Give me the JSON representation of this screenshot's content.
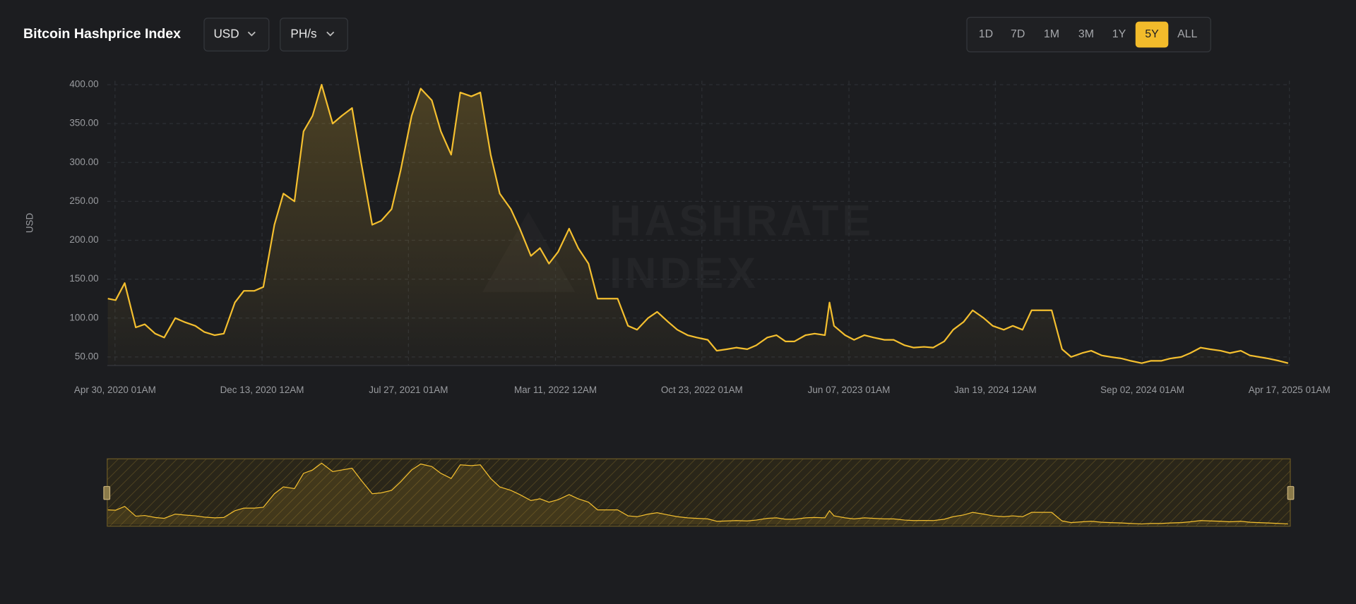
{
  "header": {
    "title": "Bitcoin Hashprice Index"
  },
  "controls": {
    "currency": "USD",
    "unit": "PH/s",
    "ranges": [
      "1D",
      "7D",
      "1M",
      "3M",
      "1Y",
      "5Y",
      "ALL"
    ],
    "active": "5Y"
  },
  "chart_data": {
    "type": "line",
    "ylabel": "USD",
    "watermark": [
      "HASHRATE",
      "INDEX"
    ],
    "color": "#f4bf2f",
    "xlim": [
      "2020-04-18",
      "2025-04-17"
    ],
    "xticks": [
      {
        "value": "2020-04-30",
        "label": "Apr 30, 2020 01AM"
      },
      {
        "value": "2020-12-13",
        "label": "Dec 13, 2020 12AM"
      },
      {
        "value": "2021-07-27",
        "label": "Jul 27, 2021 01AM"
      },
      {
        "value": "2022-03-11",
        "label": "Mar 11, 2022 12AM"
      },
      {
        "value": "2022-10-23",
        "label": "Oct 23, 2022 01AM"
      },
      {
        "value": "2023-06-07",
        "label": "Jun 07, 2023 01AM"
      },
      {
        "value": "2024-01-19",
        "label": "Jan 19, 2024 12AM"
      },
      {
        "value": "2024-09-02",
        "label": "Sep 02, 2024 01AM"
      },
      {
        "value": "2025-04-17",
        "label": "Apr 17, 2025 01AM"
      }
    ],
    "ylim": [
      39,
      405
    ],
    "yticks": [
      {
        "value": 50,
        "label": "50.00"
      },
      {
        "value": 100,
        "label": "100.00"
      },
      {
        "value": 150,
        "label": "150.00"
      },
      {
        "value": 200,
        "label": "200.00"
      },
      {
        "value": 250,
        "label": "250.00"
      },
      {
        "value": 300,
        "label": "300.00"
      },
      {
        "value": 350,
        "label": "350.00"
      },
      {
        "value": 400,
        "label": "400.00"
      }
    ],
    "grid": true,
    "x": [
      "2020-04-19",
      "2020-05-01",
      "2020-05-15",
      "2020-06-01",
      "2020-06-15",
      "2020-07-01",
      "2020-07-15",
      "2020-08-01",
      "2020-08-15",
      "2020-09-01",
      "2020-09-15",
      "2020-10-01",
      "2020-10-15",
      "2020-11-01",
      "2020-11-15",
      "2020-12-01",
      "2020-12-15",
      "2021-01-01",
      "2021-01-15",
      "2021-02-01",
      "2021-02-15",
      "2021-03-01",
      "2021-03-15",
      "2021-04-01",
      "2021-04-15",
      "2021-05-01",
      "2021-05-15",
      "2021-06-01",
      "2021-06-15",
      "2021-07-01",
      "2021-07-15",
      "2021-08-01",
      "2021-08-15",
      "2021-09-01",
      "2021-09-15",
      "2021-10-01",
      "2021-10-15",
      "2021-11-01",
      "2021-11-15",
      "2021-12-01",
      "2021-12-15",
      "2022-01-01",
      "2022-01-15",
      "2022-02-01",
      "2022-02-15",
      "2022-03-01",
      "2022-03-15",
      "2022-04-01",
      "2022-04-15",
      "2022-05-01",
      "2022-05-15",
      "2022-06-01",
      "2022-06-15",
      "2022-07-01",
      "2022-07-15",
      "2022-08-01",
      "2022-08-15",
      "2022-09-01",
      "2022-09-15",
      "2022-10-01",
      "2022-10-15",
      "2022-11-01",
      "2022-11-15",
      "2022-12-01",
      "2022-12-15",
      "2023-01-01",
      "2023-01-15",
      "2023-02-01",
      "2023-02-15",
      "2023-03-01",
      "2023-03-15",
      "2023-04-01",
      "2023-04-15",
      "2023-05-01",
      "2023-05-08",
      "2023-05-15",
      "2023-06-01",
      "2023-06-15",
      "2023-07-01",
      "2023-07-15",
      "2023-08-01",
      "2023-08-15",
      "2023-09-01",
      "2023-09-15",
      "2023-10-01",
      "2023-10-15",
      "2023-11-01",
      "2023-11-15",
      "2023-12-01",
      "2023-12-15",
      "2024-01-01",
      "2024-01-15",
      "2024-02-01",
      "2024-02-15",
      "2024-03-01",
      "2024-03-15",
      "2024-04-01",
      "2024-04-15",
      "2024-05-01",
      "2024-05-15",
      "2024-06-01",
      "2024-06-15",
      "2024-07-01",
      "2024-07-15",
      "2024-08-01",
      "2024-08-15",
      "2024-09-01",
      "2024-09-15",
      "2024-10-01",
      "2024-10-15",
      "2024-11-01",
      "2024-11-15",
      "2024-12-01",
      "2024-12-15",
      "2025-01-01",
      "2025-01-15",
      "2025-02-01",
      "2025-02-15",
      "2025-03-01",
      "2025-03-15",
      "2025-04-01",
      "2025-04-15"
    ],
    "values": [
      125,
      123,
      145,
      88,
      92,
      80,
      75,
      100,
      95,
      90,
      82,
      78,
      80,
      120,
      135,
      135,
      140,
      220,
      260,
      250,
      340,
      360,
      400,
      350,
      360,
      370,
      300,
      220,
      225,
      240,
      290,
      360,
      395,
      380,
      340,
      310,
      390,
      385,
      390,
      310,
      260,
      240,
      215,
      180,
      190,
      170,
      185,
      215,
      190,
      170,
      125,
      125,
      125,
      90,
      85,
      100,
      108,
      95,
      85,
      78,
      75,
      72,
      58,
      60,
      62,
      60,
      65,
      75,
      78,
      70,
      70,
      78,
      80,
      78,
      120,
      90,
      78,
      72,
      78,
      75,
      72,
      72,
      65,
      62,
      63,
      62,
      70,
      85,
      95,
      110,
      100,
      90,
      85,
      90,
      85,
      110,
      110,
      110,
      60,
      50,
      55,
      58,
      52,
      50,
      48,
      45,
      42,
      45,
      45,
      48,
      50,
      55,
      62,
      60,
      58,
      55,
      58,
      52,
      50,
      48,
      45,
      42
    ]
  }
}
